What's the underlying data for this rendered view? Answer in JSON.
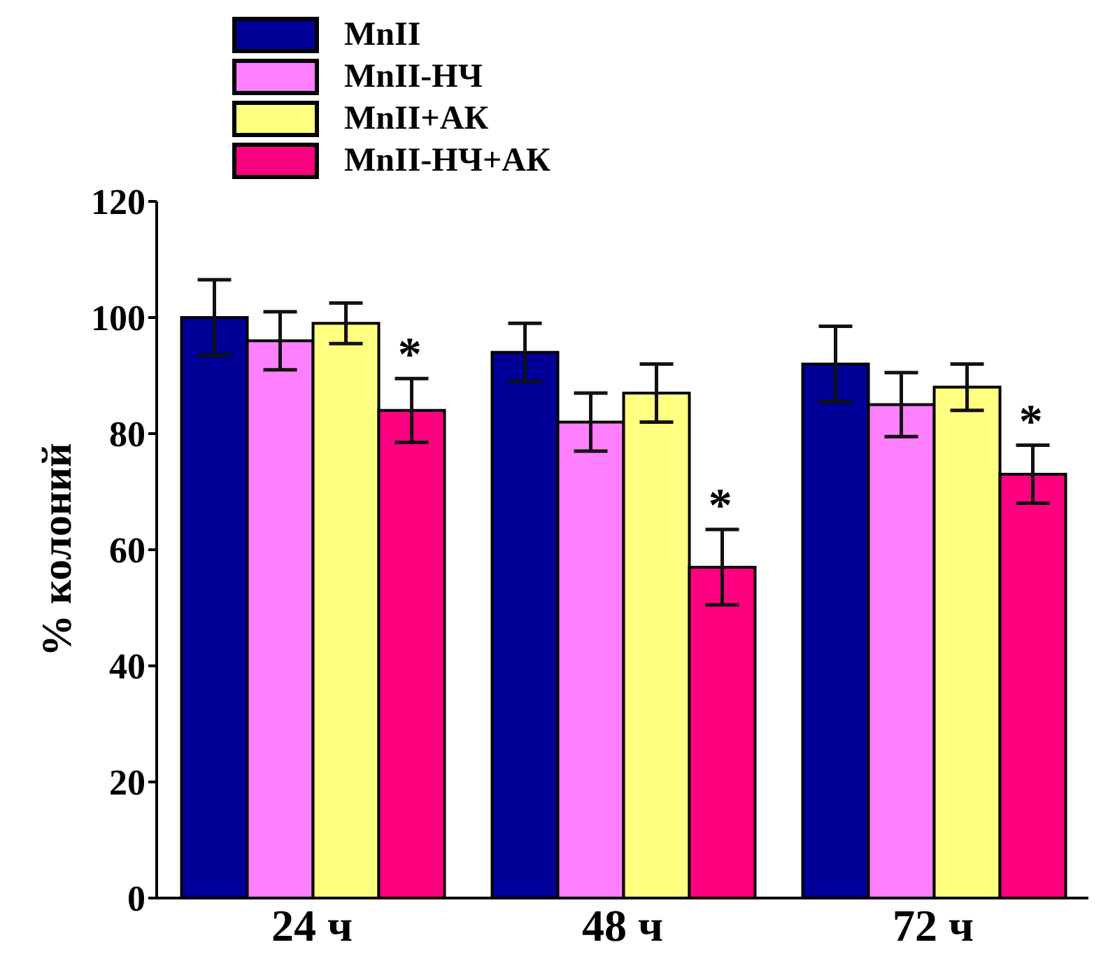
{
  "chart_data": {
    "type": "bar",
    "ylabel": "% колоний",
    "categories": [
      "24 ч",
      "48 ч",
      "72 ч"
    ],
    "series": [
      {
        "name": "MnII",
        "color": "#000099",
        "values": [
          100,
          94,
          92
        ],
        "errors": [
          6.5,
          5,
          6.5
        ]
      },
      {
        "name": "MnII-НЧ",
        "color": "#ff80ff",
        "values": [
          96,
          82,
          85
        ],
        "errors": [
          5,
          5,
          5.5
        ]
      },
      {
        "name": "MnII+АК",
        "color": "#ffff80",
        "values": [
          99,
          87,
          88
        ],
        "errors": [
          3.5,
          5,
          4
        ]
      },
      {
        "name": "MnII-НЧ+АК",
        "color": "#ff0080",
        "values": [
          84,
          57,
          73
        ],
        "errors": [
          5.5,
          6.5,
          5
        ]
      }
    ],
    "ylim": [
      0,
      120
    ],
    "yticks": [
      0,
      20,
      40,
      60,
      80,
      100,
      120
    ],
    "grid": false,
    "legend": "top left",
    "annotations": [
      "*",
      "*",
      "*"
    ]
  }
}
